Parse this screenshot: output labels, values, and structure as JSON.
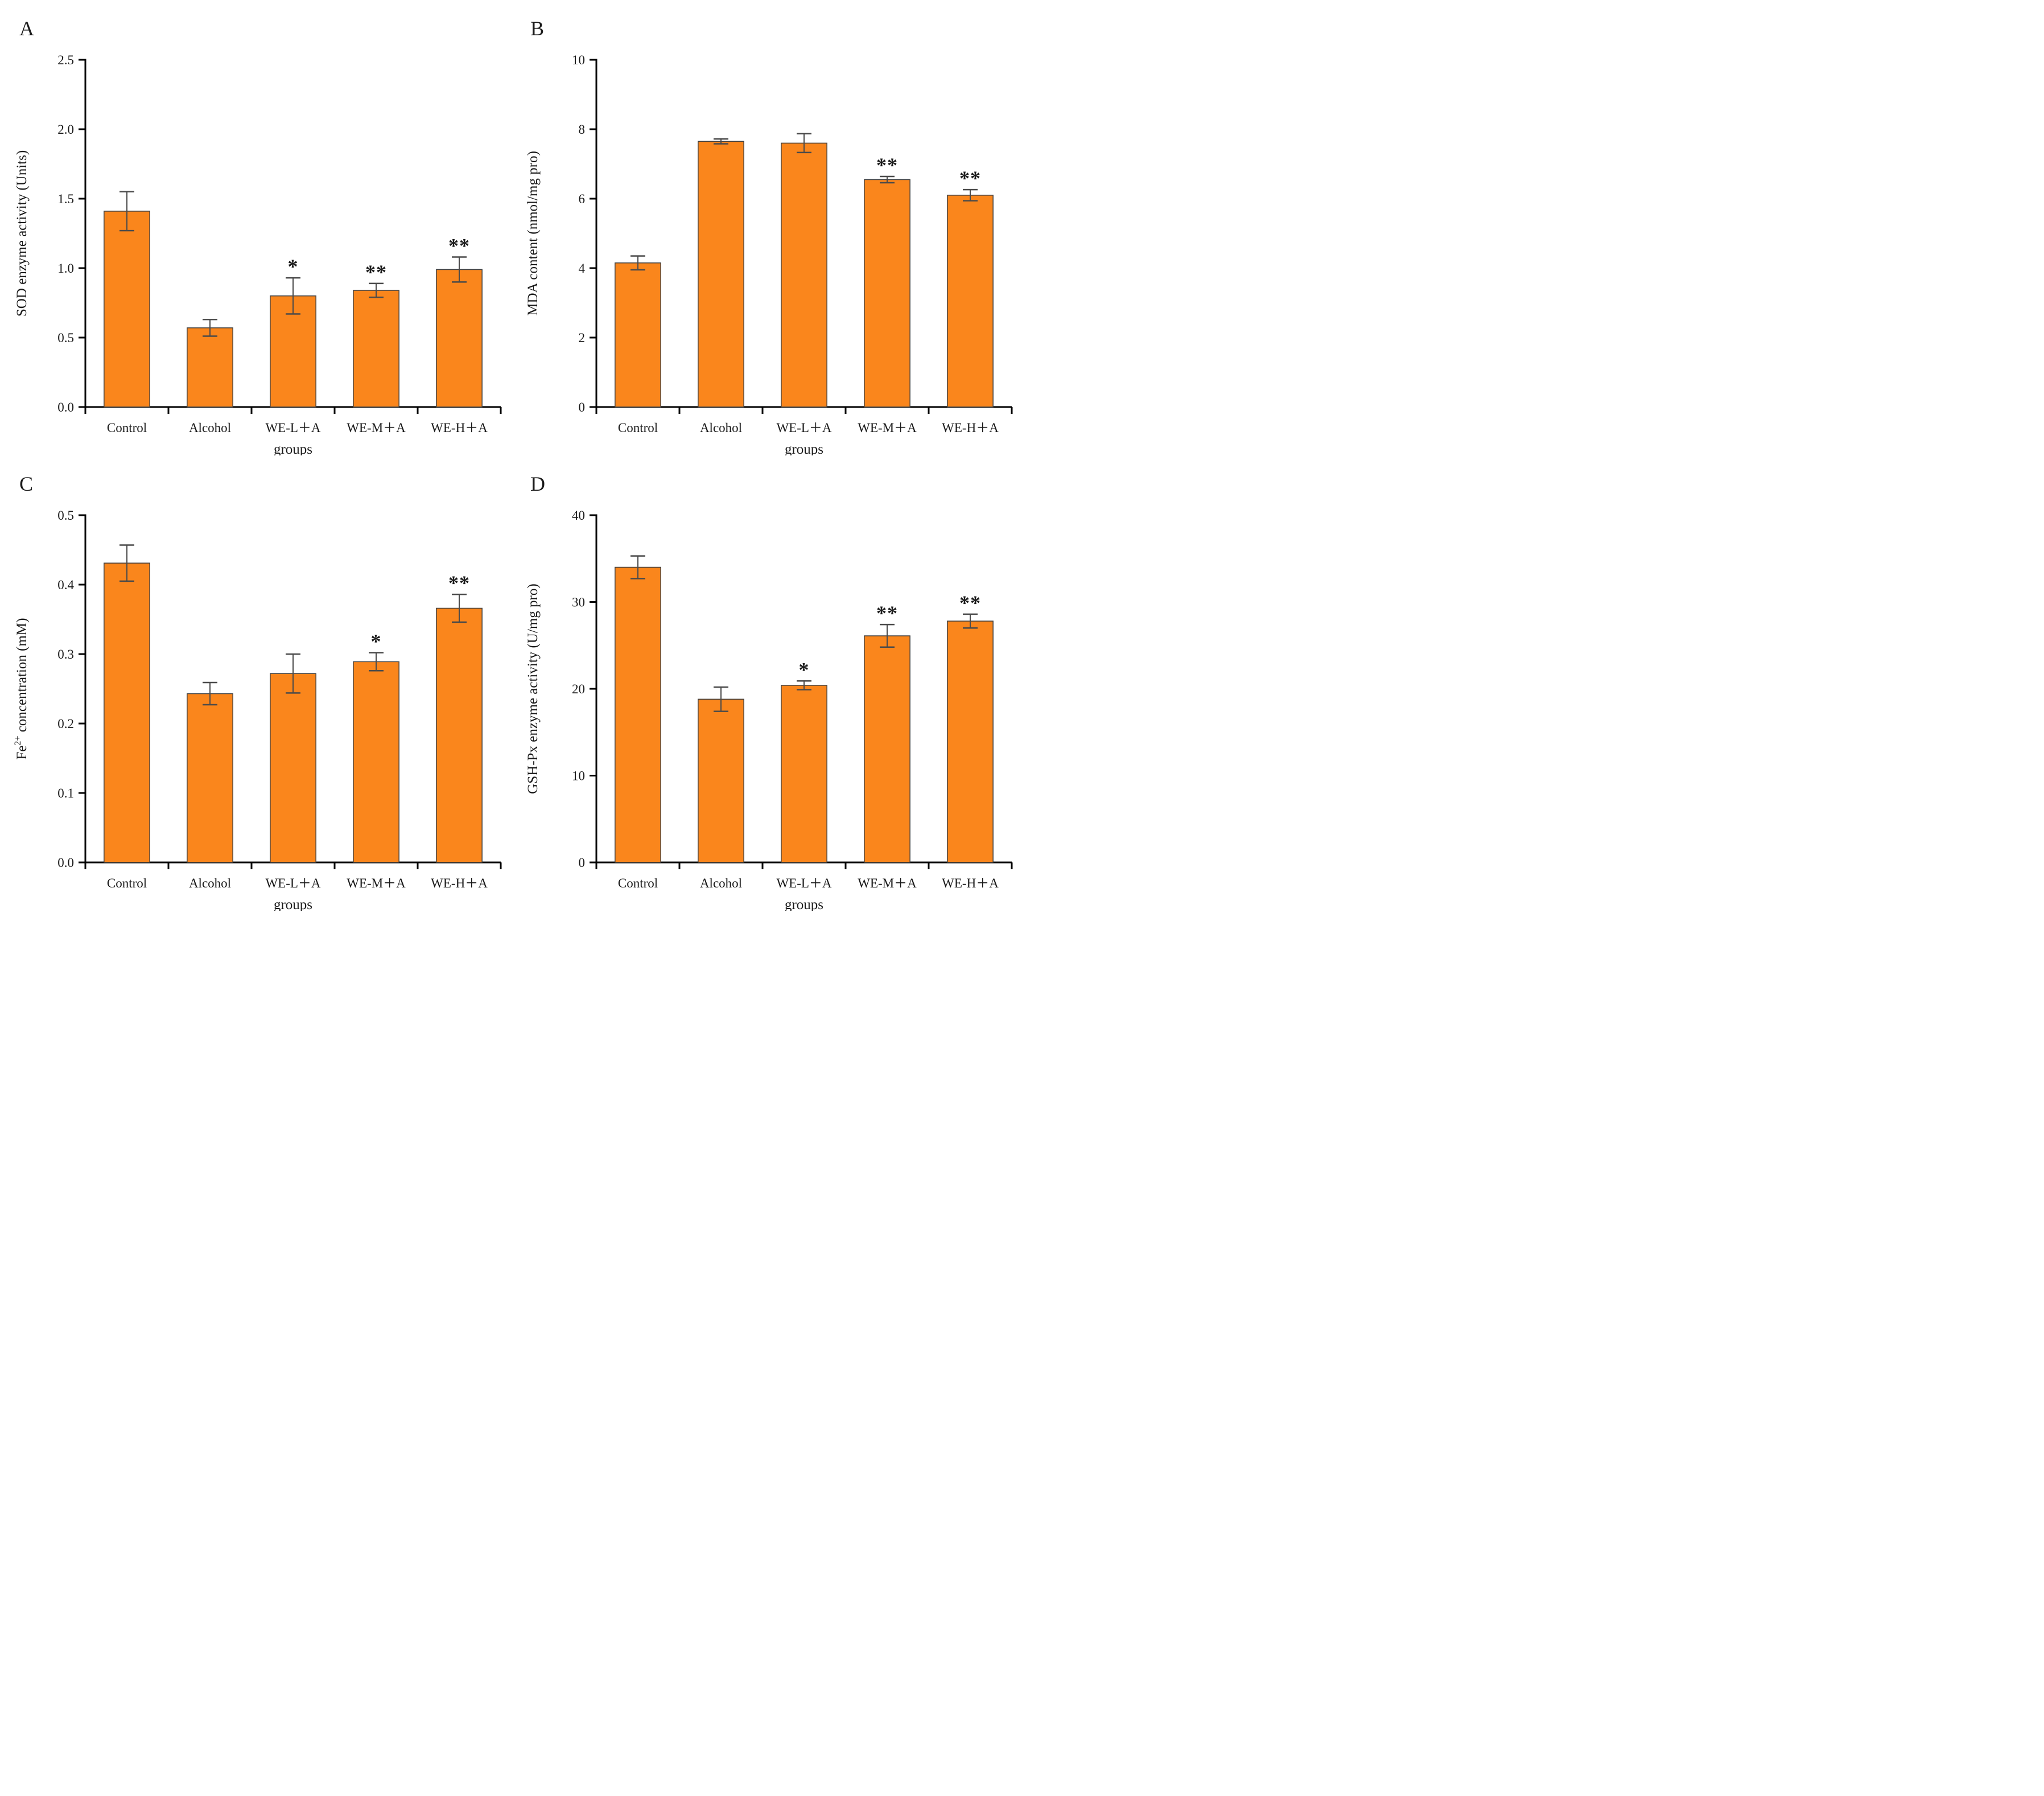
{
  "figure": {
    "description": "Four-panel bar chart figure (A-D) of antioxidant indices across treatment groups",
    "background": "#ffffff",
    "bar_fill": "#FA861C",
    "bar_stroke": "#404040",
    "error_color": "#4A4A4A",
    "axis_color": "#000000",
    "text_color": "#1a1a1a"
  },
  "chart_data": [
    {
      "panel_letter": "A",
      "type": "bar",
      "ylabel": "SOD enzyme activity (Units)",
      "xlabel": "groups",
      "ylim": [
        0,
        2.5
      ],
      "ytick_values": [
        0,
        0.5,
        1.0,
        1.5,
        2.0,
        2.5
      ],
      "ytick_labels": [
        "0.0",
        "0.5",
        "1.0",
        "1.5",
        "2.0",
        "2.5"
      ],
      "categories": [
        "Control",
        "Alcohol",
        "WE-L＋A",
        "WE-M＋A",
        "WE-H＋A"
      ],
      "values": [
        1.41,
        0.57,
        0.8,
        0.84,
        0.99
      ],
      "errors": [
        0.14,
        0.06,
        0.13,
        0.05,
        0.09
      ],
      "significance": [
        "",
        "",
        "*",
        "**",
        "**"
      ],
      "grid": false,
      "legend": "none"
    },
    {
      "panel_letter": "B",
      "type": "bar",
      "ylabel": "MDA content (nmol/mg pro)",
      "xlabel": "groups",
      "ylim": [
        0,
        10
      ],
      "ytick_values": [
        0,
        2,
        4,
        6,
        8,
        10
      ],
      "ytick_labels": [
        "0",
        "2",
        "4",
        "6",
        "8",
        "10"
      ],
      "categories": [
        "Control",
        "Alcohol",
        "WE-L＋A",
        "WE-M＋A",
        "WE-H＋A"
      ],
      "values": [
        4.15,
        7.65,
        7.6,
        6.55,
        6.1
      ],
      "errors": [
        0.2,
        0.07,
        0.27,
        0.09,
        0.16
      ],
      "significance": [
        "",
        "",
        "",
        "**",
        "**"
      ],
      "grid": false,
      "legend": "none"
    },
    {
      "panel_letter": "C",
      "type": "bar",
      "ylabel": "Fe^{2+} concentration (mM)",
      "xlabel": "groups",
      "ylim": [
        0,
        0.5
      ],
      "ytick_values": [
        0,
        0.1,
        0.2,
        0.3,
        0.4,
        0.5
      ],
      "ytick_labels": [
        "0.0",
        "0.1",
        "0.2",
        "0.3",
        "0.4",
        "0.5"
      ],
      "categories": [
        "Control",
        "Alcohol",
        "WE-L＋A",
        "WE-M＋A",
        "WE-H＋A"
      ],
      "values": [
        0.431,
        0.243,
        0.272,
        0.289,
        0.366
      ],
      "errors": [
        0.026,
        0.016,
        0.028,
        0.013,
        0.02
      ],
      "significance": [
        "",
        "",
        "",
        "*",
        "**"
      ],
      "grid": false,
      "legend": "none"
    },
    {
      "panel_letter": "D",
      "type": "bar",
      "ylabel": "GSH-Px enzyme activity (U/mg pro)",
      "xlabel": "groups",
      "ylim": [
        0,
        40
      ],
      "ytick_values": [
        0,
        10,
        20,
        30,
        40
      ],
      "ytick_labels": [
        "0",
        "10",
        "20",
        "30",
        "40"
      ],
      "categories": [
        "Control",
        "Alcohol",
        "WE-L＋A",
        "WE-M＋A",
        "WE-H＋A"
      ],
      "values": [
        34.0,
        18.8,
        20.4,
        26.1,
        27.8
      ],
      "errors": [
        1.3,
        1.4,
        0.5,
        1.3,
        0.8
      ],
      "significance": [
        "",
        "",
        "*",
        "**",
        "**"
      ],
      "grid": false,
      "legend": "none"
    }
  ]
}
